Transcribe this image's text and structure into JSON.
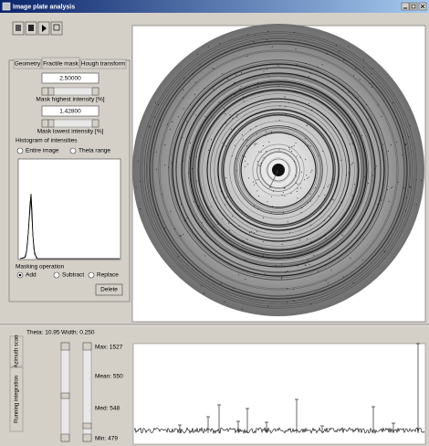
{
  "window": {
    "title": "Image plate analysis"
  },
  "tabs": [
    "Geometry",
    "Fractile mask",
    "Hough transform"
  ],
  "mask": {
    "highest_value": "2.50000",
    "highest_label": "Mask highest intensity [%]",
    "lowest_value": "1.42800",
    "lowest_label": "Mask lowest intensity [%]"
  },
  "histogram": {
    "title": "Histogram of intensities",
    "options": [
      "Entire image",
      "Theta range"
    ]
  },
  "masking": {
    "title": "Masking operation",
    "options": [
      "Add",
      "Subtract",
      "Replace"
    ],
    "button": "Delete"
  },
  "scan": {
    "theta": "Theta: 10.95",
    "width": "Width: 0.250",
    "side_tabs": [
      "Azimuth scan",
      "Running integration"
    ],
    "stats": [
      "Max: 1527",
      "Mean: 550",
      "Med: 548",
      "Min: 479"
    ]
  }
}
